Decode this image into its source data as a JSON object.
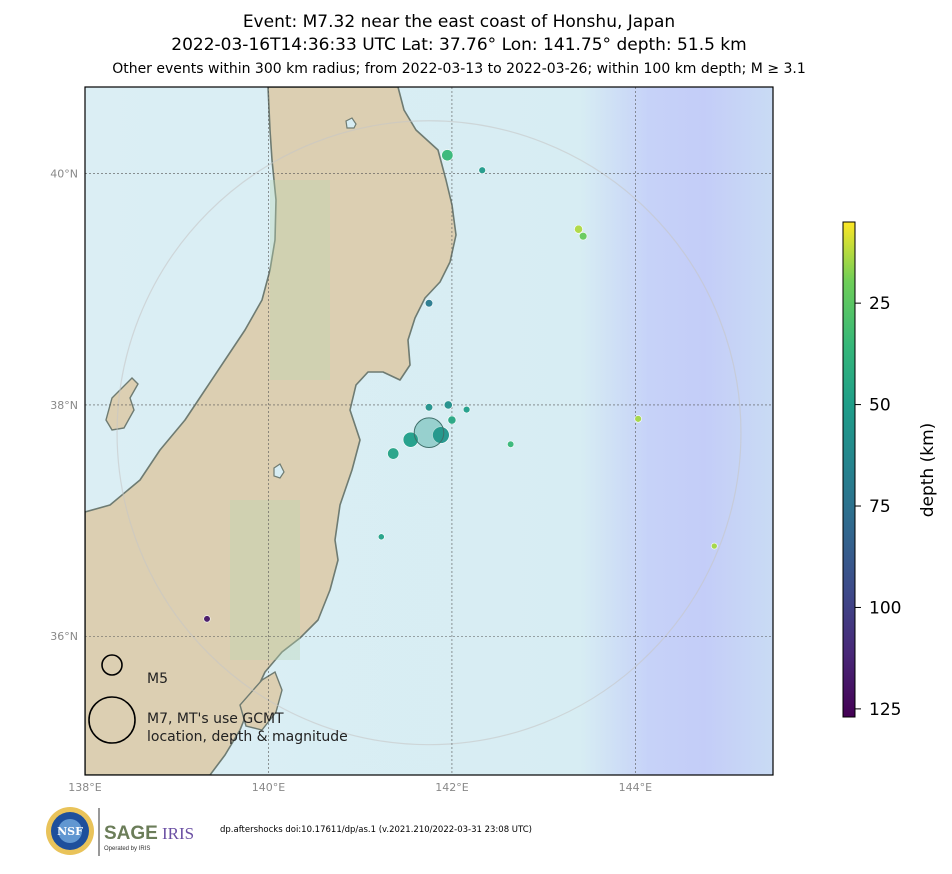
{
  "header": {
    "title_line1": "Event: M7.32 near the east coast of Honshu, Japan",
    "title_line2": "2022-03-16T14:36:33 UTC Lat: 37.76° Lon: 141.75° depth: 51.5 km",
    "title_line3": "Other events within 300 km radius; from 2022-03-13 to 2022-03-26; within 100 km depth; M ≥ 3.1"
  },
  "map": {
    "lon_range": [
      138.0,
      145.5
    ],
    "lat_range": [
      34.8,
      40.75
    ],
    "lon_ticks": [
      {
        "value": 138,
        "label": "138°E"
      },
      {
        "value": 140,
        "label": "140°E"
      },
      {
        "value": 142,
        "label": "142°E"
      },
      {
        "value": 144,
        "label": "144°E"
      }
    ],
    "lat_ticks": [
      {
        "value": 36,
        "label": "36°N"
      },
      {
        "value": 38,
        "label": "38°N"
      },
      {
        "value": 40,
        "label": "40°N"
      }
    ],
    "mainshock": {
      "lon": 141.75,
      "lat": 37.76,
      "depth": 51.5,
      "mag": 7.32
    },
    "search_radius_km": 300,
    "events": [
      {
        "lon": 141.95,
        "lat": 40.16,
        "depth": 35,
        "mag": 5.3
      },
      {
        "lon": 142.33,
        "lat": 40.03,
        "depth": 52,
        "mag": 4.2
      },
      {
        "lon": 143.38,
        "lat": 39.52,
        "depth": 13,
        "mag": 4.6
      },
      {
        "lon": 143.43,
        "lat": 39.46,
        "depth": 22,
        "mag": 4.5
      },
      {
        "lon": 141.75,
        "lat": 38.88,
        "depth": 70,
        "mag": 4.4
      },
      {
        "lon": 141.75,
        "lat": 37.98,
        "depth": 57,
        "mag": 4.4
      },
      {
        "lon": 141.96,
        "lat": 38.0,
        "depth": 58,
        "mag": 4.6
      },
      {
        "lon": 142.16,
        "lat": 37.96,
        "depth": 50,
        "mag": 4.2
      },
      {
        "lon": 142.0,
        "lat": 37.87,
        "depth": 45,
        "mag": 4.6
      },
      {
        "lon": 141.36,
        "lat": 37.58,
        "depth": 47,
        "mag": 5.3
      },
      {
        "lon": 141.55,
        "lat": 37.7,
        "depth": 50,
        "mag": 5.9
      },
      {
        "lon": 141.88,
        "lat": 37.74,
        "depth": 55,
        "mag": 6.1
      },
      {
        "lon": 142.64,
        "lat": 37.66,
        "depth": 35,
        "mag": 4.1
      },
      {
        "lon": 144.03,
        "lat": 37.88,
        "depth": 14,
        "mag": 4.2
      },
      {
        "lon": 141.23,
        "lat": 36.86,
        "depth": 48,
        "mag": 4.0
      },
      {
        "lon": 144.86,
        "lat": 36.78,
        "depth": 14,
        "mag": 3.9
      },
      {
        "lon": 139.33,
        "lat": 36.15,
        "depth": 118,
        "mag": 4.1
      }
    ]
  },
  "legend": {
    "m5_label": "M5",
    "m7_label_line1": "M7, MT's use GCMT",
    "m7_label_line2": "location, depth & magnitude"
  },
  "colorbar": {
    "label": "depth (km)",
    "range": [
      5,
      127
    ],
    "ticks": [
      {
        "value": 25,
        "label": "25"
      },
      {
        "value": 50,
        "label": "50"
      },
      {
        "value": 75,
        "label": "75"
      },
      {
        "value": 100,
        "label": "100"
      },
      {
        "value": 125,
        "label": "125"
      }
    ]
  },
  "footer": {
    "credit": "dp.aftershocks doi:10.17611/dp/as.1 (v.2021.210/2022-03-31 23:08 UTC)",
    "logo_nsf": "NSF",
    "logo_sage": "SAGE",
    "logo_iris": "IRIS",
    "logo_sub": "Operated by IRIS"
  },
  "colors": {
    "land": "#d8cdb0",
    "sea": "#d7ecf2",
    "deep_sea": "#c9d4f7",
    "coast": "#6e7b72",
    "grid": "#555555"
  }
}
